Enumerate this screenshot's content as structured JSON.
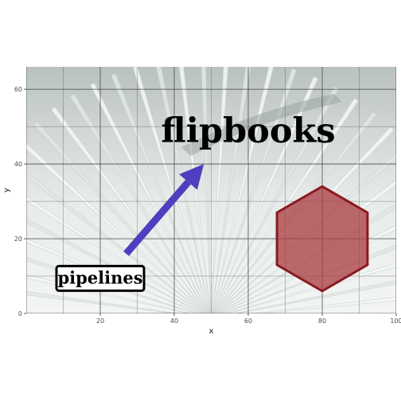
{
  "chart_data": {
    "type": "scatter",
    "title": "",
    "xlabel": "x",
    "ylabel": "y",
    "xlim": [
      0,
      100
    ],
    "ylim": [
      0,
      66
    ],
    "x_ticks": [
      20,
      40,
      60,
      80,
      100
    ],
    "y_ticks": [
      0,
      20,
      40,
      60
    ],
    "grid": true,
    "background": "photo of an open flipbook with fanned pages",
    "annotations": {
      "title_text": {
        "text": "flipbooks",
        "x": 60,
        "y": 49
      },
      "box_label": {
        "text": "pipelines",
        "x": 20,
        "y": 9.5
      },
      "arrow": {
        "x_start": 27,
        "y_start": 16,
        "x_end": 48,
        "y_end": 40,
        "color": "#4f3fc0"
      },
      "hexagon": {
        "center_x": 80,
        "center_y": 20,
        "radius_y": 14,
        "fill": "#a83a3f",
        "stroke": "#8b1a20"
      }
    }
  }
}
